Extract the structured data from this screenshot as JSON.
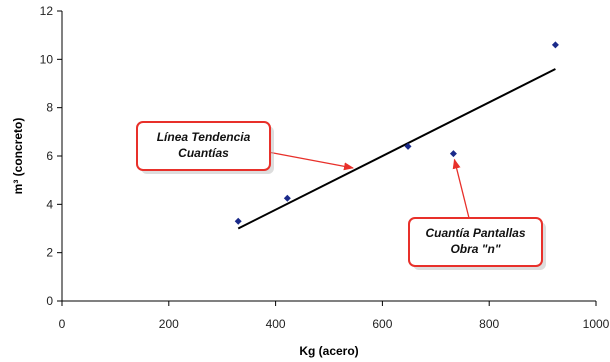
{
  "chart_data": {
    "type": "scatter",
    "xlabel": "Kg (acero)",
    "ylabel": "m³ (concreto)",
    "xlim": [
      0,
      1000
    ],
    "ylim": [
      0,
      12
    ],
    "xticks": [
      0,
      200,
      400,
      600,
      800,
      1000
    ],
    "yticks": [
      0,
      2,
      4,
      6,
      8,
      10,
      12
    ],
    "grid": false,
    "points": [
      {
        "x": 330,
        "y": 3.3
      },
      {
        "x": 422,
        "y": 4.25
      },
      {
        "x": 648,
        "y": 6.4
      },
      {
        "x": 733,
        "y": 6.1
      },
      {
        "x": 924,
        "y": 10.6
      }
    ],
    "trendline": {
      "x": [
        330,
        924
      ],
      "y": [
        3.0,
        9.6
      ]
    },
    "annotations": [
      {
        "lines": [
          "Línea Tendencia",
          "Cuantías"
        ],
        "points_to": "trendline"
      },
      {
        "lines": [
          "Cuantía Pantallas",
          "Obra \"n\""
        ],
        "points_to": {
          "x": 733,
          "y": 6.1
        }
      }
    ],
    "colors": {
      "points": "#1a2a8a",
      "trendline": "#000000",
      "callout_border": "#e8302a",
      "callout_fill": "#ffffff"
    }
  }
}
